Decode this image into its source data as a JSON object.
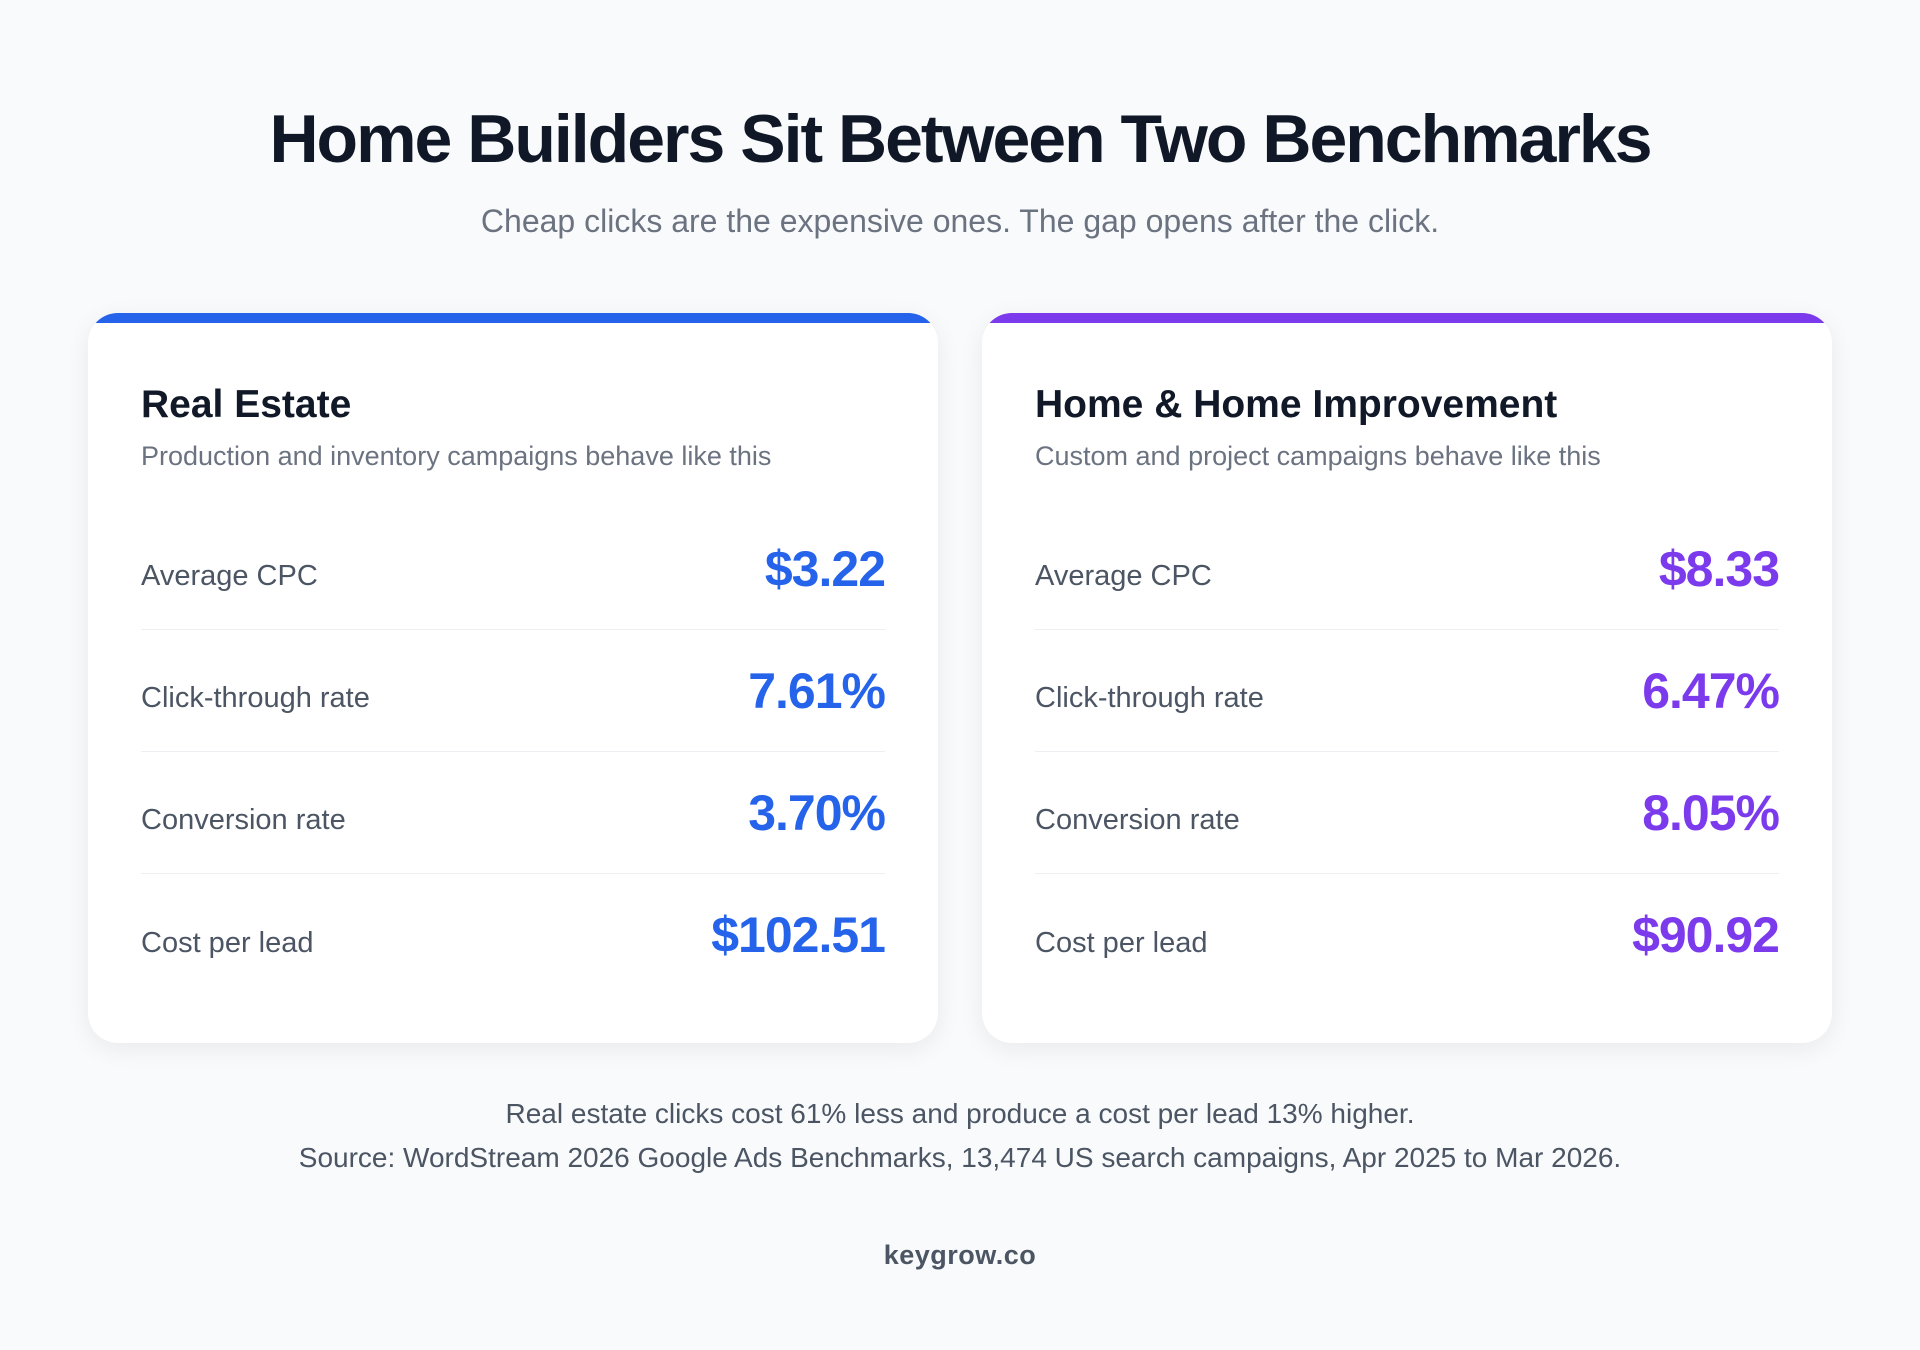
{
  "header": {
    "title": "Home Builders Sit Between Two Benchmarks",
    "subtitle": "Cheap clicks are the expensive ones. The gap opens after the click."
  },
  "colors": {
    "real_estate_accent": "#2563eb",
    "home_improvement_accent": "#7c3aed"
  },
  "cards": [
    {
      "title": "Real Estate",
      "subtitle": "Production and inventory campaigns behave like this",
      "metrics": [
        {
          "label": "Average CPC",
          "value": "$3.22"
        },
        {
          "label": "Click-through rate",
          "value": "7.61%"
        },
        {
          "label": "Conversion rate",
          "value": "3.70%"
        },
        {
          "label": "Cost per lead",
          "value": "$102.51"
        }
      ]
    },
    {
      "title": "Home & Home Improvement",
      "subtitle": "Custom and project campaigns behave like this",
      "metrics": [
        {
          "label": "Average CPC",
          "value": "$8.33"
        },
        {
          "label": "Click-through rate",
          "value": "6.47%"
        },
        {
          "label": "Conversion rate",
          "value": "8.05%"
        },
        {
          "label": "Cost per lead",
          "value": "$90.92"
        }
      ]
    }
  ],
  "footer": {
    "note": "Real estate clicks cost 61% less and produce a cost per lead 13% higher.",
    "source": "Source: WordStream 2026 Google Ads Benchmarks, 13,474 US search campaigns, Apr 2025 to Mar 2026.",
    "brand": "keygrow.co"
  }
}
